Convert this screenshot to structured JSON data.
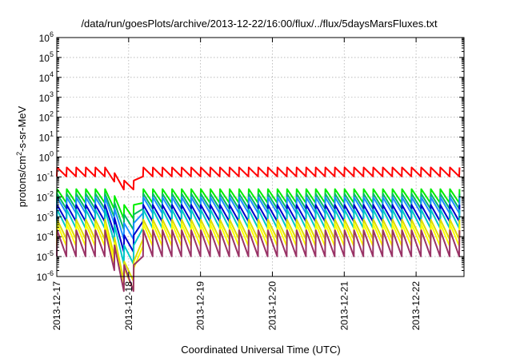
{
  "chart_data": {
    "type": "line",
    "title": "/data/run/goesPlots/archive/2013-12-22/16:00/flux/../flux/5daysMarsFluxes.txt",
    "xlabel": "Coordinated Universal Time (UTC)",
    "ylabel": {
      "base": "protons/cm",
      "sup": "2",
      "rest": "-s-sr-MeV"
    },
    "y_scale": "log",
    "ylim": [
      1e-06,
      1000000
    ],
    "y_ticks": [
      {
        "value": 1e-06,
        "base": "10",
        "exp": "-6"
      },
      {
        "value": 1e-05,
        "base": "10",
        "exp": "-5"
      },
      {
        "value": 0.0001,
        "base": "10",
        "exp": "-4"
      },
      {
        "value": 0.001,
        "base": "10",
        "exp": "-3"
      },
      {
        "value": 0.01,
        "base": "10",
        "exp": "-2"
      },
      {
        "value": 0.1,
        "base": "10",
        "exp": "-1"
      },
      {
        "value": 1,
        "base": "10",
        "exp": "0"
      },
      {
        "value": 10,
        "base": "10",
        "exp": "1"
      },
      {
        "value": 100,
        "base": "10",
        "exp": "2"
      },
      {
        "value": 1000,
        "base": "10",
        "exp": "3"
      },
      {
        "value": 10000,
        "base": "10",
        "exp": "4"
      },
      {
        "value": 100000,
        "base": "10",
        "exp": "5"
      },
      {
        "value": 1000000,
        "base": "10",
        "exp": "6"
      }
    ],
    "xlim": [
      "2013-12-17 00:00",
      "2013-12-22 16:00"
    ],
    "x_ticks": [
      "2013-12-17",
      "2013-12-18",
      "2013-12-19",
      "2013-12-20",
      "2013-12-21",
      "2013-12-22"
    ],
    "grid": true,
    "series": [
      {
        "color": "#ff0000",
        "base": 0.15,
        "amp": 2.0,
        "dip_factor": 0.22
      },
      {
        "color": "#00ee00",
        "base": 0.0085,
        "amp": 2.9,
        "dip_factor": 0.16
      },
      {
        "color": "#00bb66",
        "base": 0.0045,
        "amp": 3.2,
        "dip_factor": 0.09
      },
      {
        "color": "#1e90ff",
        "base": 0.0028,
        "amp": 3.4,
        "dip_factor": 0.05
      },
      {
        "color": "#0000cc",
        "base": 0.0011,
        "amp": 3.6,
        "dip_factor": 0.03
      },
      {
        "color": "#00c8c8",
        "base": 0.00055,
        "amp": 4.2,
        "dip_factor": 0.016
      },
      {
        "color": "#dddd00",
        "base": 0.00016,
        "amp": 4.5,
        "dip_factor": 0.008
      },
      {
        "color": "#ffff00",
        "base": 8e-05,
        "amp": 5.5,
        "dip_factor": 0.006
      },
      {
        "color": "#993366",
        "base": 2.8e-05,
        "amp": 7.5,
        "dip_factor": 0.018
      }
    ]
  }
}
